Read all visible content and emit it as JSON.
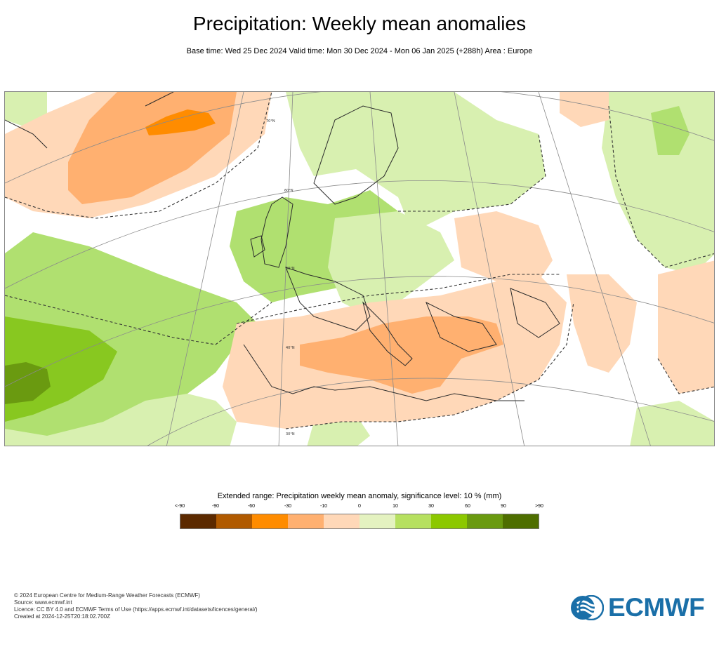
{
  "title": "Precipitation: Weekly mean anomalies",
  "subtitle": "Base time: Wed 25 Dec 2024 Valid time: Mon 30 Dec 2024 - Mon 06 Jan 2025 (+288h) Area : Europe",
  "map": {
    "region": "Europe",
    "lat_labels": [
      "70°N",
      "60°N",
      "50°N",
      "40°N",
      "30°N"
    ],
    "colors": {
      "neg_strong": "#ff8c00",
      "neg_mid": "#ffb070",
      "neg_weak": "#ffd8b8",
      "pos_weak": "#d8f0b0",
      "pos_mid": "#b0e070",
      "pos_strong": "#88c820",
      "pos_very": "#6a9a10",
      "background": "#ffffff"
    }
  },
  "legend": {
    "title": "Extended range: Precipitation weekly mean anomaly, significance level: 10 % (mm)",
    "labels": [
      "<-90",
      "-90",
      "-60",
      "-30",
      "-10",
      "0",
      "10",
      "30",
      "60",
      "90",
      ">90"
    ],
    "colors": [
      "#5c2a00",
      "#b05a00",
      "#ff8c00",
      "#ffb070",
      "#ffd8b8",
      "#e4f2c0",
      "#b6e060",
      "#8cc800",
      "#6a9a10",
      "#4e6e00"
    ]
  },
  "footer": {
    "lines": [
      "© 2024 European Centre for Medium-Range Weather Forecasts (ECMWF)",
      "Source: www.ecmwf.int",
      "Licence: CC BY 4.0 and ECMWF Terms of Use (https://apps.ecmwf.int/datasets/licences/general/)",
      "Created at 2024-12-25T20:18:02.700Z"
    ]
  },
  "logo": {
    "text": "ECMWF",
    "color": "#1a6fa8"
  }
}
